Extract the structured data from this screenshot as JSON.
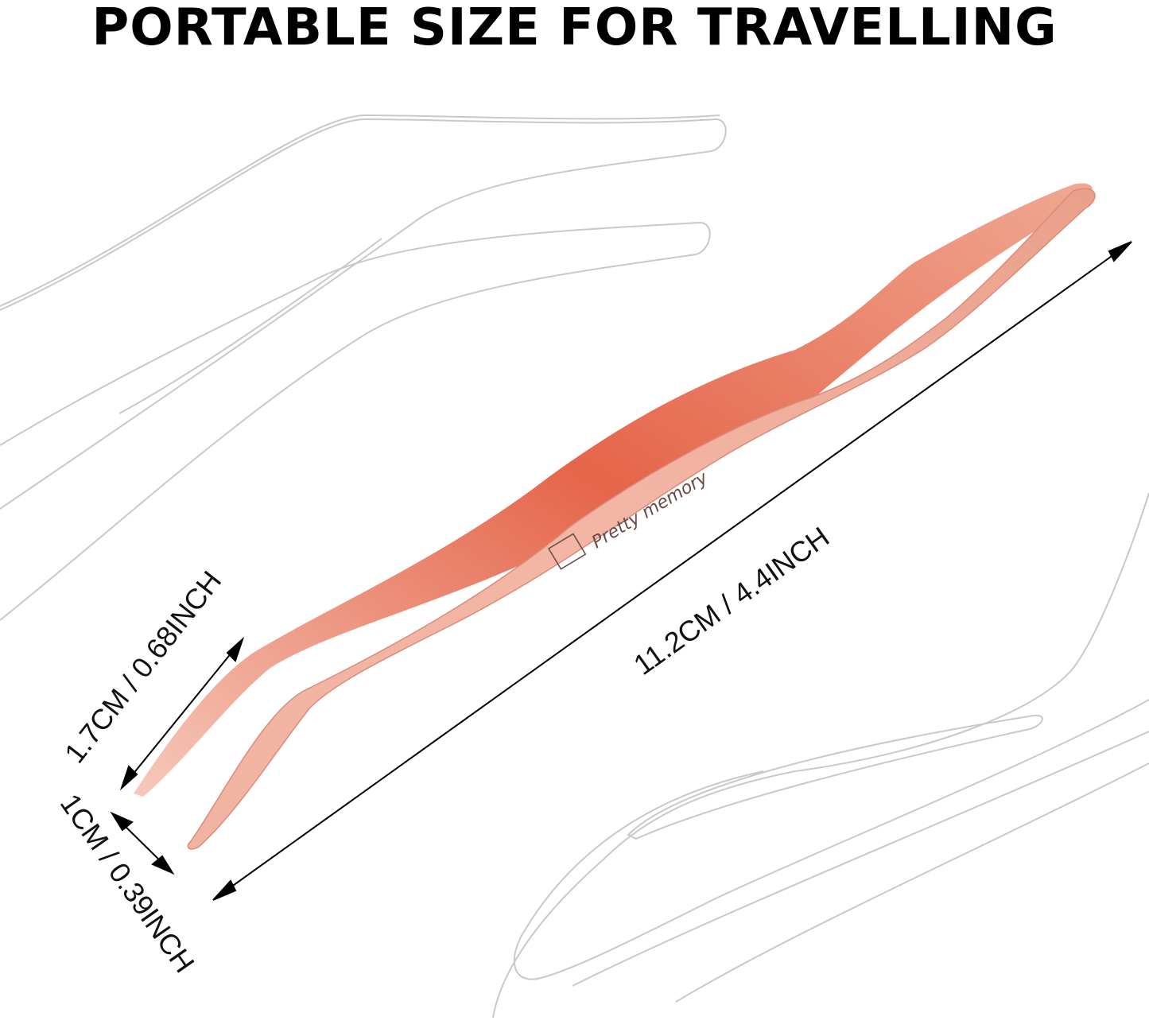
{
  "title": "PORTABLE SIZE FOR TRAVELLING",
  "dimensions": {
    "length": "11.2CM / 4.4INCH",
    "tip_length": "1.7CM / 0.68INCH",
    "tip_gap": "1CM / 0.39INCH"
  },
  "product": {
    "brand_engraving": "Pretty memory",
    "color": "#e9a48f"
  }
}
